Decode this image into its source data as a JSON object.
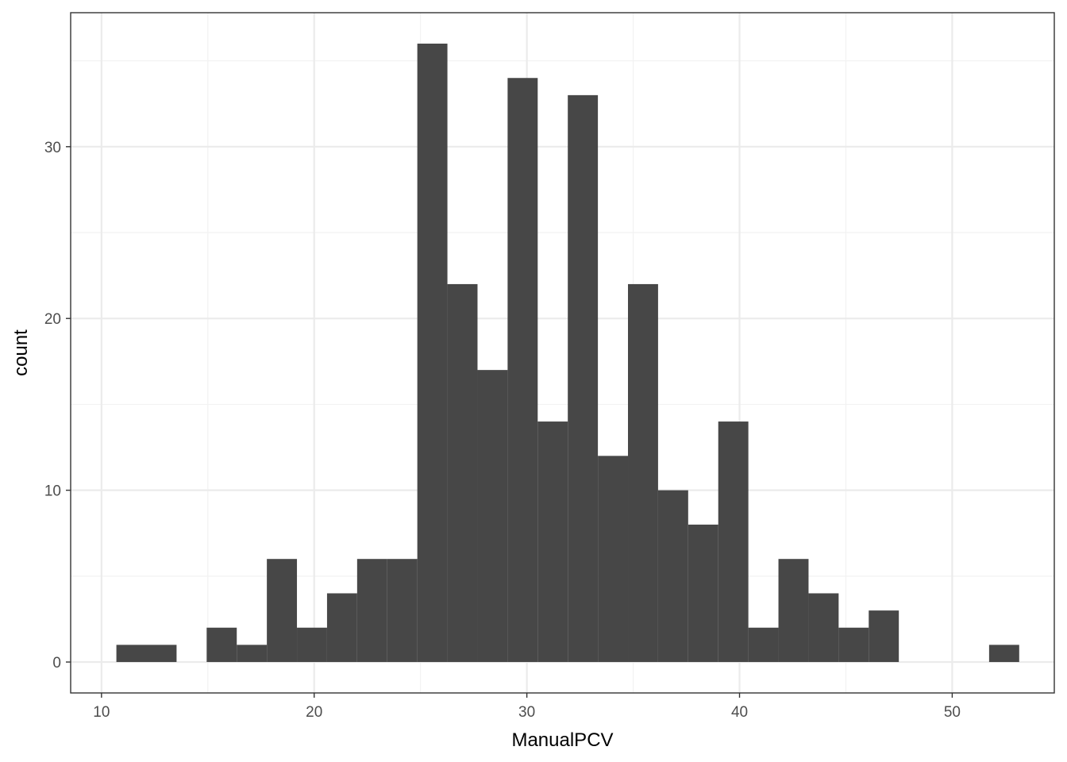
{
  "chart_data": {
    "type": "bar",
    "subtype": "histogram",
    "title": "",
    "xlabel": "ManualPCV",
    "ylabel": "count",
    "xlim": [
      8.55,
      54.8
    ],
    "ylim": [
      -1.8,
      37.8
    ],
    "x_ticks": [
      10,
      20,
      30,
      40,
      50
    ],
    "y_ticks": [
      0,
      10,
      20,
      30
    ],
    "grid": true,
    "legend": "none",
    "bin_width": 1.415,
    "bins": [
      {
        "x0": 10.7,
        "x1": 12.115,
        "count": 1
      },
      {
        "x0": 12.115,
        "x1": 13.53,
        "count": 1
      },
      {
        "x0": 13.53,
        "x1": 14.945,
        "count": 0
      },
      {
        "x0": 14.945,
        "x1": 16.36,
        "count": 2
      },
      {
        "x0": 16.36,
        "x1": 17.775,
        "count": 1
      },
      {
        "x0": 17.775,
        "x1": 19.19,
        "count": 6
      },
      {
        "x0": 19.19,
        "x1": 20.605,
        "count": 2
      },
      {
        "x0": 20.605,
        "x1": 22.02,
        "count": 4
      },
      {
        "x0": 22.02,
        "x1": 23.435,
        "count": 6
      },
      {
        "x0": 23.435,
        "x1": 24.85,
        "count": 6
      },
      {
        "x0": 24.85,
        "x1": 26.265,
        "count": 36
      },
      {
        "x0": 26.265,
        "x1": 27.68,
        "count": 22
      },
      {
        "x0": 27.68,
        "x1": 29.095,
        "count": 17
      },
      {
        "x0": 29.095,
        "x1": 30.51,
        "count": 34
      },
      {
        "x0": 30.51,
        "x1": 31.925,
        "count": 14
      },
      {
        "x0": 31.925,
        "x1": 33.34,
        "count": 33
      },
      {
        "x0": 33.34,
        "x1": 34.755,
        "count": 12
      },
      {
        "x0": 34.755,
        "x1": 36.17,
        "count": 22
      },
      {
        "x0": 36.17,
        "x1": 37.585,
        "count": 10
      },
      {
        "x0": 37.585,
        "x1": 39.0,
        "count": 8
      },
      {
        "x0": 39.0,
        "x1": 40.415,
        "count": 14
      },
      {
        "x0": 40.415,
        "x1": 41.83,
        "count": 2
      },
      {
        "x0": 41.83,
        "x1": 43.245,
        "count": 6
      },
      {
        "x0": 43.245,
        "x1": 44.66,
        "count": 4
      },
      {
        "x0": 44.66,
        "x1": 46.075,
        "count": 2
      },
      {
        "x0": 46.075,
        "x1": 47.49,
        "count": 3
      },
      {
        "x0": 47.49,
        "x1": 48.905,
        "count": 0
      },
      {
        "x0": 48.905,
        "x1": 50.32,
        "count": 0
      },
      {
        "x0": 50.32,
        "x1": 51.735,
        "count": 0
      },
      {
        "x0": 51.735,
        "x1": 53.15,
        "count": 1
      }
    ],
    "colors": {
      "bar": "#474747",
      "panel_border": "#333333",
      "grid_major": "#ebebeb",
      "grid_minor": "#f2f2f2",
      "tick_text": "#4d4d4d",
      "axis_title": "#000000"
    }
  }
}
